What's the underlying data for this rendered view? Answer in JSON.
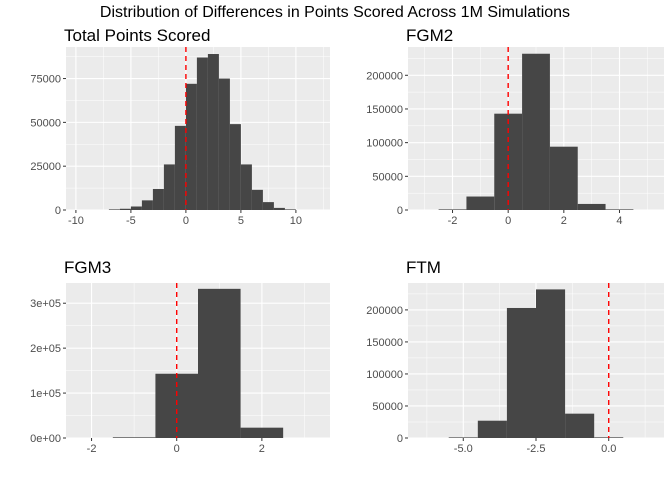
{
  "supertitle": "Distribution of Differences in Points Scored Across 1M Simulations",
  "colors": {
    "bar": "#464646",
    "panel": "#ebebeb",
    "grid": "#ffffff",
    "reference_line": "#ff0000"
  },
  "chart_data": [
    {
      "type": "bar",
      "title": "Total Points Scored",
      "xlabel": "",
      "ylabel": "",
      "xlim": [
        -10.9,
        13.1
      ],
      "ylim": [
        0,
        93000
      ],
      "grid": true,
      "reference_line_x": 0,
      "x_ticks": [
        -10,
        -5,
        0,
        5,
        10
      ],
      "x_tick_labels": [
        "-10",
        "-5",
        "0",
        "5",
        "10"
      ],
      "y_ticks": [
        0,
        25000,
        50000,
        75000
      ],
      "y_tick_labels": [
        "0",
        "25000",
        "50000",
        "75000"
      ],
      "bins": [
        {
          "x0": -7,
          "x1": -6,
          "count": 200
        },
        {
          "x0": -6,
          "x1": -5,
          "count": 700
        },
        {
          "x0": -5,
          "x1": -4,
          "count": 2000
        },
        {
          "x0": -4,
          "x1": -3,
          "count": 5500
        },
        {
          "x0": -3,
          "x1": -2,
          "count": 12000
        },
        {
          "x0": -2,
          "x1": -1,
          "count": 26000
        },
        {
          "x0": -1,
          "x1": 0,
          "count": 48000
        },
        {
          "x0": 0,
          "x1": 1,
          "count": 72000
        },
        {
          "x0": 1,
          "x1": 2,
          "count": 87000
        },
        {
          "x0": 2,
          "x1": 3,
          "count": 89000
        },
        {
          "x0": 3,
          "x1": 4,
          "count": 75000
        },
        {
          "x0": 4,
          "x1": 5,
          "count": 49000
        },
        {
          "x0": 5,
          "x1": 6,
          "count": 26000
        },
        {
          "x0": 6,
          "x1": 7,
          "count": 11500
        },
        {
          "x0": 7,
          "x1": 8,
          "count": 4500
        },
        {
          "x0": 8,
          "x1": 9,
          "count": 1200
        },
        {
          "x0": 9,
          "x1": 10,
          "count": 300
        }
      ]
    },
    {
      "type": "bar",
      "title": "FGM2",
      "xlabel": "",
      "ylabel": "",
      "xlim": [
        -3.6,
        5.6
      ],
      "ylim": [
        0,
        242000
      ],
      "grid": true,
      "reference_line_x": 0,
      "x_ticks": [
        -2,
        0,
        2,
        4
      ],
      "x_tick_labels": [
        "-2",
        "0",
        "2",
        "4"
      ],
      "y_ticks": [
        0,
        50000,
        100000,
        150000,
        200000
      ],
      "y_tick_labels": [
        "0",
        "50000",
        "100000",
        "150000",
        "200000"
      ],
      "bins": [
        {
          "x0": -2.5,
          "x1": -1.5,
          "count": 800
        },
        {
          "x0": -1.5,
          "x1": -0.5,
          "count": 20000
        },
        {
          "x0": -0.5,
          "x1": 0.5,
          "count": 143000
        },
        {
          "x0": 0.5,
          "x1": 1.5,
          "count": 232000
        },
        {
          "x0": 1.5,
          "x1": 2.5,
          "count": 94000
        },
        {
          "x0": 2.5,
          "x1": 3.5,
          "count": 9000
        },
        {
          "x0": 3.5,
          "x1": 4.5,
          "count": 500
        }
      ]
    },
    {
      "type": "bar",
      "title": "FGM3",
      "xlabel": "",
      "ylabel": "",
      "xlim": [
        -2.6,
        3.6
      ],
      "ylim": [
        0,
        345000
      ],
      "grid": true,
      "reference_line_x": 0,
      "x_ticks": [
        -2,
        0,
        2
      ],
      "x_tick_labels": [
        "-2",
        "0",
        "2"
      ],
      "y_ticks": [
        0,
        100000,
        200000,
        300000
      ],
      "y_tick_labels": [
        "0e+00",
        "1e+05",
        "2e+05",
        "3e+05"
      ],
      "bins": [
        {
          "x0": -1.5,
          "x1": -0.5,
          "count": 1500
        },
        {
          "x0": -0.5,
          "x1": 0.5,
          "count": 143000
        },
        {
          "x0": 0.5,
          "x1": 1.5,
          "count": 332000
        },
        {
          "x0": 1.5,
          "x1": 2.5,
          "count": 23000
        }
      ]
    },
    {
      "type": "bar",
      "title": "FTM",
      "xlabel": "",
      "ylabel": "",
      "xlim": [
        -6.9,
        1.9
      ],
      "ylim": [
        0,
        242000
      ],
      "grid": true,
      "reference_line_x": 0,
      "x_ticks": [
        -5,
        -2.5,
        0
      ],
      "x_tick_labels": [
        "-5.0",
        "-2.5",
        "0.0"
      ],
      "y_ticks": [
        0,
        50000,
        100000,
        150000,
        200000
      ],
      "y_tick_labels": [
        "0",
        "50000",
        "100000",
        "150000",
        "200000"
      ],
      "bins": [
        {
          "x0": -5.5,
          "x1": -4.5,
          "count": 400
        },
        {
          "x0": -4.5,
          "x1": -3.5,
          "count": 27000
        },
        {
          "x0": -3.5,
          "x1": -2.5,
          "count": 203000
        },
        {
          "x0": -2.5,
          "x1": -1.5,
          "count": 232000
        },
        {
          "x0": -1.5,
          "x1": -0.5,
          "count": 38000
        },
        {
          "x0": -0.5,
          "x1": 0.5,
          "count": 1000
        }
      ]
    }
  ]
}
